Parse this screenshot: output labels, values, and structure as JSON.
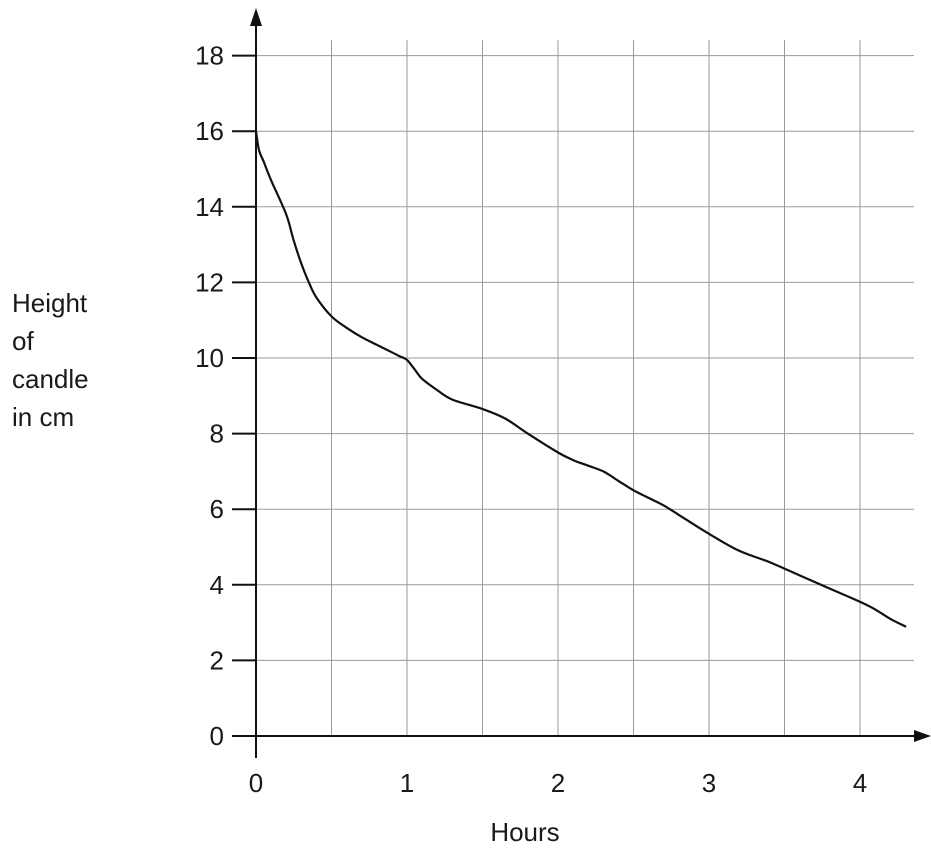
{
  "chart_data": {
    "type": "line",
    "xlabel": "Hours",
    "ylabel_lines": [
      "Height",
      "of",
      "candle",
      "in cm"
    ],
    "xlim": [
      0,
      4.4
    ],
    "ylim": [
      0,
      18
    ],
    "x_ticks": [
      0,
      1,
      2,
      3,
      4
    ],
    "y_ticks": [
      0,
      2,
      4,
      6,
      8,
      10,
      12,
      14,
      16,
      18
    ],
    "x_gridlines": [
      0.5,
      1,
      1.5,
      2,
      2.5,
      3,
      3.5,
      4,
      4.5
    ],
    "y_gridlines": [
      2,
      4,
      6,
      8,
      10,
      12,
      14,
      16,
      18
    ],
    "grid": true,
    "line_color": "#111111",
    "series": [
      {
        "x": [
          0,
          0.02,
          0.05,
          0.1,
          0.2,
          0.25,
          0.3,
          0.35,
          0.4,
          0.5,
          0.6,
          0.7,
          0.8,
          0.9,
          0.95,
          1.0,
          1.05,
          1.1,
          1.2,
          1.3,
          1.5,
          1.65,
          1.8,
          2.0,
          2.1,
          2.2,
          2.3,
          2.4,
          2.5,
          2.6,
          2.7,
          2.8,
          3.0,
          3.2,
          3.4,
          3.6,
          3.8,
          4.0,
          4.1,
          4.2,
          4.3
        ],
        "y": [
          16.0,
          15.5,
          15.2,
          14.7,
          13.8,
          13.1,
          12.5,
          12.0,
          11.6,
          11.1,
          10.8,
          10.55,
          10.35,
          10.15,
          10.05,
          9.95,
          9.7,
          9.45,
          9.15,
          8.9,
          8.65,
          8.4,
          8.0,
          7.5,
          7.3,
          7.15,
          7.0,
          6.75,
          6.5,
          6.3,
          6.1,
          5.85,
          5.35,
          4.9,
          4.6,
          4.25,
          3.9,
          3.55,
          3.35,
          3.1,
          2.9
        ]
      }
    ]
  }
}
